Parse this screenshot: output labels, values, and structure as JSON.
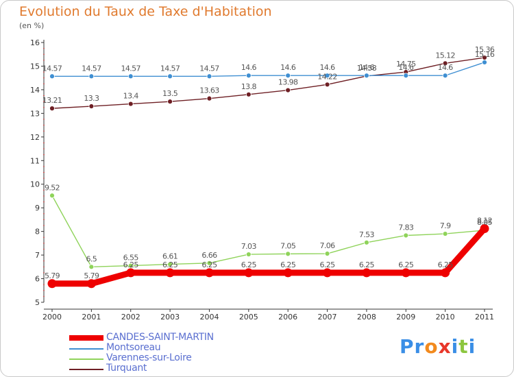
{
  "header": {
    "title": "Evolution du Taux de Taxe d'Habitation",
    "ylabel": "(en %)"
  },
  "brand": {
    "text": "Proxiti",
    "colors": [
      "#3a8ee6",
      "#3a8ee6",
      "#f28a1e",
      "#e8372a",
      "#3a8ee6",
      "#8cc63f",
      "#3a8ee6"
    ]
  },
  "chart_data": {
    "type": "line",
    "title": "Evolution du Taux de Taxe d'Habitation",
    "ylabel": "(en %)",
    "xlabel": "",
    "ylim": [
      5,
      16
    ],
    "yticks": [
      5,
      6,
      7,
      8,
      9,
      10,
      11,
      12,
      13,
      14,
      15,
      16
    ],
    "x": [
      "2000",
      "2001",
      "2002",
      "2003",
      "2004",
      "2005",
      "2006",
      "2007",
      "2008",
      "2009",
      "2010",
      "2011"
    ],
    "grid": false,
    "legend_position": "bottom-left",
    "series": [
      {
        "name": "CANDES-SAINT-MARTIN",
        "color": "#ee0000",
        "values": [
          5.79,
          5.79,
          6.25,
          6.25,
          6.25,
          6.25,
          6.25,
          6.25,
          6.25,
          6.25,
          6.25,
          8.12
        ],
        "labels": [
          "5.79",
          "5.79",
          "6.25",
          "6.25",
          "6.25",
          "6.25",
          "6.25",
          "6.25",
          "6.25",
          "6.25",
          "6.25",
          "8.12"
        ]
      },
      {
        "name": "Montsoreau",
        "color": "#3f8fd2",
        "values": [
          14.57,
          14.57,
          14.57,
          14.57,
          14.57,
          14.6,
          14.6,
          14.6,
          14.6,
          14.6,
          14.6,
          15.16
        ],
        "labels": [
          "14.57",
          "14.57",
          "14.57",
          "14.57",
          "14.57",
          "14.6",
          "14.6",
          "14.6",
          "14.6",
          "14.6",
          "14.6",
          "15.16"
        ]
      },
      {
        "name": "Varennes-sur-Loire",
        "color": "#8fd35a",
        "values": [
          9.52,
          6.5,
          6.55,
          6.61,
          6.66,
          7.03,
          7.05,
          7.06,
          7.53,
          7.83,
          7.9,
          8.05
        ],
        "labels": [
          "9.52",
          "6.5",
          "6.55",
          "6.61",
          "6.66",
          "7.03",
          "7.05",
          "7.06",
          "7.53",
          "7.83",
          "7.9",
          "8.05"
        ]
      },
      {
        "name": "Turquant",
        "color": "#6e1f24",
        "values": [
          13.21,
          13.3,
          13.4,
          13.5,
          13.63,
          13.8,
          13.98,
          14.22,
          14.58,
          14.75,
          15.12,
          15.36
        ],
        "labels": [
          "13.21",
          "13.3",
          "13.4",
          "13.5",
          "13.63",
          "13.8",
          "13.98",
          "14.22",
          "14.58",
          "14.75",
          "15.12",
          "15.36"
        ]
      }
    ]
  }
}
